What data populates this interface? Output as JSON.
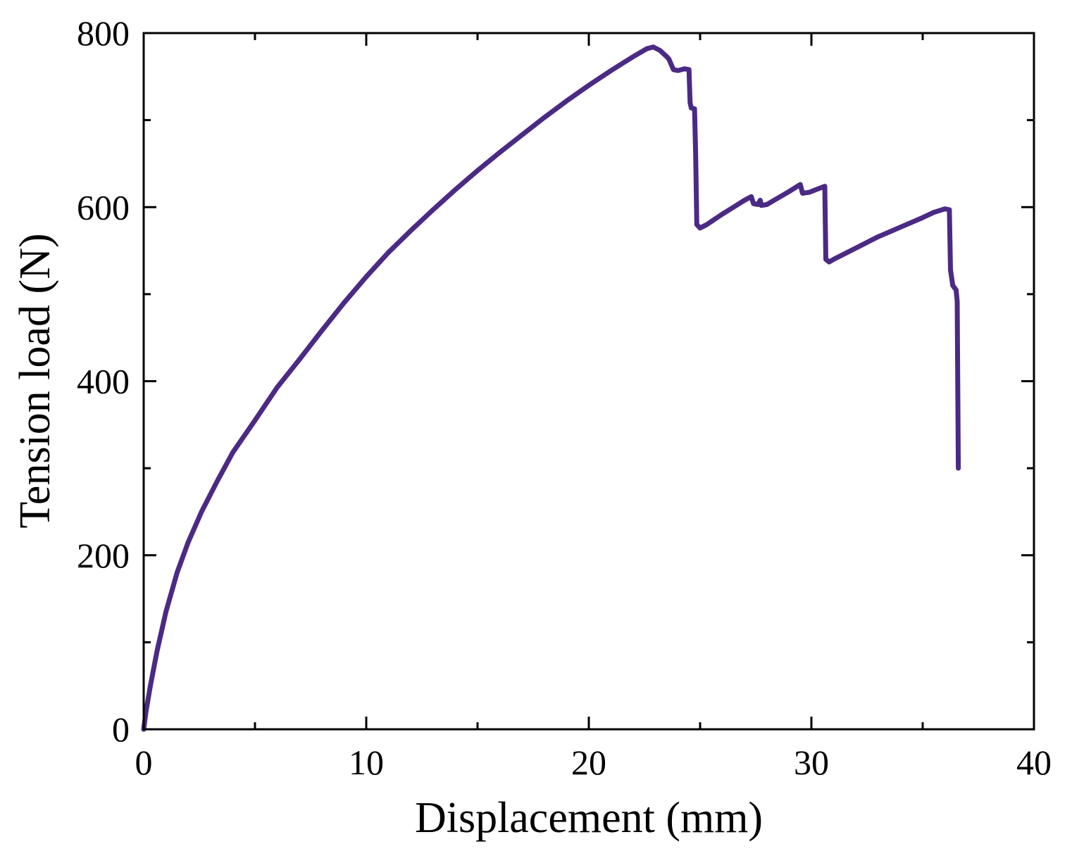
{
  "chart_data": {
    "type": "line",
    "xlabel": "Displacement (mm)",
    "ylabel": "Tension load (N)",
    "xlim": [
      0,
      40
    ],
    "ylim": [
      0,
      800
    ],
    "x_ticks": [
      0,
      10,
      20,
      30,
      40
    ],
    "y_ticks": [
      0,
      200,
      400,
      600,
      800
    ],
    "x_minor_step": 5,
    "y_minor_step": 100,
    "grid": false,
    "legend": "none",
    "series": [
      {
        "color": "#4b2a85",
        "points": [
          [
            0,
            0
          ],
          [
            0.1,
            20
          ],
          [
            0.3,
            50
          ],
          [
            0.6,
            90
          ],
          [
            1.0,
            135
          ],
          [
            1.5,
            180
          ],
          [
            2.0,
            215
          ],
          [
            2.6,
            250
          ],
          [
            3.3,
            285
          ],
          [
            4.0,
            318
          ],
          [
            5.0,
            355
          ],
          [
            6.0,
            393
          ],
          [
            7.0,
            425
          ],
          [
            8.0,
            458
          ],
          [
            9.0,
            490
          ],
          [
            10.0,
            520
          ],
          [
            11.0,
            548
          ],
          [
            12.0,
            573
          ],
          [
            13.0,
            597
          ],
          [
            14.0,
            620
          ],
          [
            15.0,
            642
          ],
          [
            16.0,
            663
          ],
          [
            17.0,
            683
          ],
          [
            18.0,
            703
          ],
          [
            19.0,
            722
          ],
          [
            20.0,
            740
          ],
          [
            21.0,
            757
          ],
          [
            22.0,
            773
          ],
          [
            22.6,
            782
          ],
          [
            22.9,
            784
          ],
          [
            23.2,
            780
          ],
          [
            23.5,
            773
          ],
          [
            23.6,
            770
          ],
          [
            23.8,
            758
          ],
          [
            24.0,
            757
          ],
          [
            24.3,
            759
          ],
          [
            24.5,
            758
          ],
          [
            24.55,
            720
          ],
          [
            24.6,
            714
          ],
          [
            24.75,
            713
          ],
          [
            24.8,
            660
          ],
          [
            24.85,
            580
          ],
          [
            25.0,
            576
          ],
          [
            25.3,
            580
          ],
          [
            26.0,
            592
          ],
          [
            26.5,
            600
          ],
          [
            27.0,
            608
          ],
          [
            27.3,
            612
          ],
          [
            27.4,
            604
          ],
          [
            27.6,
            603
          ],
          [
            27.7,
            608
          ],
          [
            27.75,
            602
          ],
          [
            28.0,
            603
          ],
          [
            29.0,
            618
          ],
          [
            29.5,
            626
          ],
          [
            29.6,
            616
          ],
          [
            29.9,
            617
          ],
          [
            30.2,
            620
          ],
          [
            30.6,
            624
          ],
          [
            30.65,
            540
          ],
          [
            30.8,
            537
          ],
          [
            31.0,
            540
          ],
          [
            32.0,
            553
          ],
          [
            33.0,
            566
          ],
          [
            34.0,
            577
          ],
          [
            35.0,
            588
          ],
          [
            35.5,
            594
          ],
          [
            36.0,
            598
          ],
          [
            36.2,
            597
          ],
          [
            36.25,
            528
          ],
          [
            36.35,
            510
          ],
          [
            36.5,
            505
          ],
          [
            36.55,
            492
          ],
          [
            36.6,
            300
          ]
        ]
      }
    ]
  }
}
